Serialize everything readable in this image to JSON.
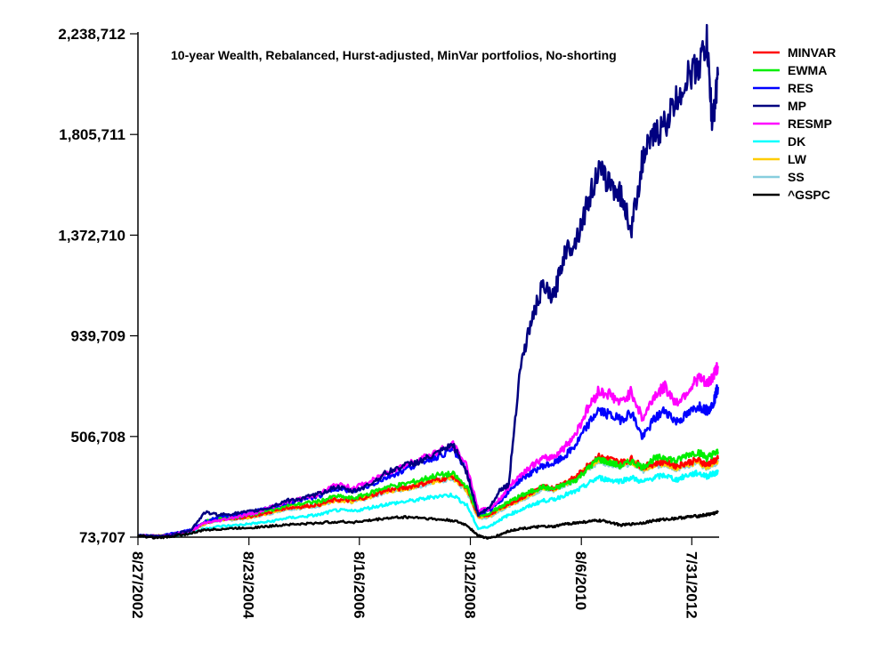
{
  "chart_data": {
    "type": "line",
    "title": "10-year Wealth, Rebalanced, Hurst-adjusted, MinVar portfolios, No-shorting",
    "xlabel": "",
    "ylabel": "",
    "ylim": [
      73707,
      2238712
    ],
    "xlim": [
      "8/27/2002",
      "12/31/2012"
    ],
    "grid": false,
    "legend_position": "right",
    "yticks": [
      "73,707",
      "506,708",
      "939,709",
      "1,372,710",
      "1,805,711",
      "2,238,712"
    ],
    "ytick_values": [
      73707,
      506708,
      939709,
      1372710,
      1805711,
      2238712
    ],
    "xticks": [
      "8/27/2002",
      "8/23/2004",
      "8/16/2006",
      "8/12/2008",
      "8/6/2010",
      "7/31/2012"
    ],
    "xtick_years": [
      2002.65,
      2004.64,
      2006.62,
      2008.61,
      2010.6,
      2012.58
    ],
    "x": [
      2002.65,
      2003.0,
      2003.3,
      2003.6,
      2003.85,
      2004.1,
      2004.4,
      2004.7,
      2005.0,
      2005.3,
      2005.6,
      2005.9,
      2006.2,
      2006.5,
      2006.8,
      2007.1,
      2007.4,
      2007.7,
      2008.0,
      2008.3,
      2008.55,
      2008.75,
      2008.95,
      2009.15,
      2009.3,
      2009.5,
      2009.7,
      2009.9,
      2010.1,
      2010.3,
      2010.5,
      2010.7,
      2010.9,
      2011.1,
      2011.3,
      2011.5,
      2011.7,
      2011.9,
      2012.1,
      2012.3,
      2012.5,
      2012.7,
      2012.85,
      2012.95,
      2013.05
    ],
    "series": [
      {
        "name": "MINVAR",
        "color": "#ff0000",
        "values": [
          80000,
          78000,
          85000,
          100000,
          135000,
          150000,
          155000,
          165000,
          180000,
          200000,
          205000,
          215000,
          235000,
          230000,
          250000,
          275000,
          285000,
          300000,
          320000,
          335000,
          280000,
          165000,
          170000,
          200000,
          215000,
          240000,
          265000,
          290000,
          285000,
          310000,
          330000,
          380000,
          420000,
          410000,
          395000,
          410000,
          375000,
          390000,
          400000,
          380000,
          395000,
          405000,
          385000,
          400000,
          410000
        ]
      },
      {
        "name": "EWMA",
        "color": "#00ee00",
        "values": [
          80000,
          78000,
          86000,
          102000,
          140000,
          155000,
          160000,
          172000,
          188000,
          210000,
          218000,
          228000,
          250000,
          240000,
          262000,
          290000,
          300000,
          318000,
          340000,
          345000,
          290000,
          170000,
          175000,
          205000,
          225000,
          250000,
          270000,
          290000,
          280000,
          300000,
          320000,
          365000,
          410000,
          395000,
          380000,
          400000,
          375000,
          410000,
          420000,
          400000,
          430000,
          440000,
          415000,
          430000,
          440000
        ]
      },
      {
        "name": "RES",
        "color": "#0000ff",
        "values": [
          80000,
          78000,
          90000,
          105000,
          140000,
          160000,
          170000,
          180000,
          200000,
          220000,
          235000,
          250000,
          285000,
          270000,
          295000,
          330000,
          360000,
          395000,
          420000,
          450000,
          360000,
          180000,
          185000,
          230000,
          270000,
          320000,
          350000,
          380000,
          390000,
          420000,
          470000,
          550000,
          620000,
          600000,
          580000,
          610000,
          500000,
          580000,
          620000,
          570000,
          600000,
          640000,
          620000,
          640000,
          720000
        ]
      },
      {
        "name": "MP",
        "color": "#000080",
        "values": [
          80000,
          78000,
          85000,
          105000,
          180000,
          170000,
          175000,
          185000,
          200000,
          230000,
          240000,
          260000,
          290000,
          270000,
          300000,
          350000,
          380000,
          400000,
          430000,
          470000,
          350000,
          170000,
          200000,
          280000,
          300000,
          800000,
          1000000,
          1150000,
          1100000,
          1300000,
          1350000,
          1500000,
          1650000,
          1600000,
          1550000,
          1400000,
          1700000,
          1800000,
          1850000,
          1950000,
          2050000,
          2100000,
          2200000,
          1850000,
          2060000
        ]
      },
      {
        "name": "RESMP",
        "color": "#ff00ff",
        "values": [
          80000,
          78000,
          86000,
          100000,
          135000,
          145000,
          160000,
          175000,
          200000,
          225000,
          240000,
          260000,
          300000,
          285000,
          310000,
          350000,
          380000,
          410000,
          440000,
          470000,
          380000,
          190000,
          195000,
          240000,
          290000,
          340000,
          380000,
          410000,
          420000,
          460000,
          520000,
          620000,
          700000,
          690000,
          650000,
          700000,
          580000,
          680000,
          720000,
          650000,
          700000,
          760000,
          730000,
          760000,
          810000
        ]
      },
      {
        "name": "DK",
        "color": "#00ffff",
        "values": [
          80000,
          76000,
          80000,
          92000,
          110000,
          120000,
          125000,
          132000,
          140000,
          155000,
          162000,
          170000,
          190000,
          185000,
          200000,
          215000,
          225000,
          235000,
          250000,
          255000,
          210000,
          110000,
          120000,
          150000,
          170000,
          190000,
          210000,
          230000,
          235000,
          255000,
          270000,
          300000,
          330000,
          320000,
          315000,
          330000,
          310000,
          330000,
          340000,
          320000,
          340000,
          350000,
          335000,
          345000,
          355000
        ]
      },
      {
        "name": "LW",
        "color": "#ffcc00",
        "values": [
          80000,
          78000,
          84000,
          98000,
          132000,
          148000,
          153000,
          162000,
          178000,
          198000,
          203000,
          213000,
          232000,
          228000,
          248000,
          272000,
          282000,
          297000,
          318000,
          330000,
          275000,
          160000,
          165000,
          195000,
          212000,
          236000,
          260000,
          285000,
          280000,
          305000,
          325000,
          372000,
          410000,
          400000,
          388000,
          402000,
          368000,
          385000,
          393000,
          373000,
          388000,
          398000,
          378000,
          392000,
          402000
        ]
      },
      {
        "name": "SS",
        "color": "#87cede",
        "values": [
          80000,
          78000,
          84000,
          96000,
          130000,
          145000,
          150000,
          160000,
          175000,
          195000,
          200000,
          210000,
          230000,
          225000,
          245000,
          270000,
          280000,
          295000,
          315000,
          325000,
          270000,
          155000,
          160000,
          190000,
          210000,
          232000,
          255000,
          280000,
          275000,
          300000,
          320000,
          365000,
          400000,
          392000,
          380000,
          395000,
          362000,
          380000,
          388000,
          368000,
          383000,
          393000,
          373000,
          388000,
          398000
        ]
      },
      {
        "name": "^GSPC",
        "color": "#000000",
        "values": [
          80000,
          70000,
          78000,
          90000,
          105000,
          108000,
          112000,
          115000,
          120000,
          128000,
          130000,
          135000,
          140000,
          138000,
          145000,
          155000,
          160000,
          158000,
          150000,
          145000,
          125000,
          80000,
          68000,
          85000,
          100000,
          110000,
          115000,
          120000,
          118000,
          130000,
          135000,
          140000,
          145000,
          140000,
          125000,
          130000,
          135000,
          145000,
          150000,
          155000,
          160000,
          165000,
          170000,
          175000,
          180000
        ]
      }
    ]
  }
}
